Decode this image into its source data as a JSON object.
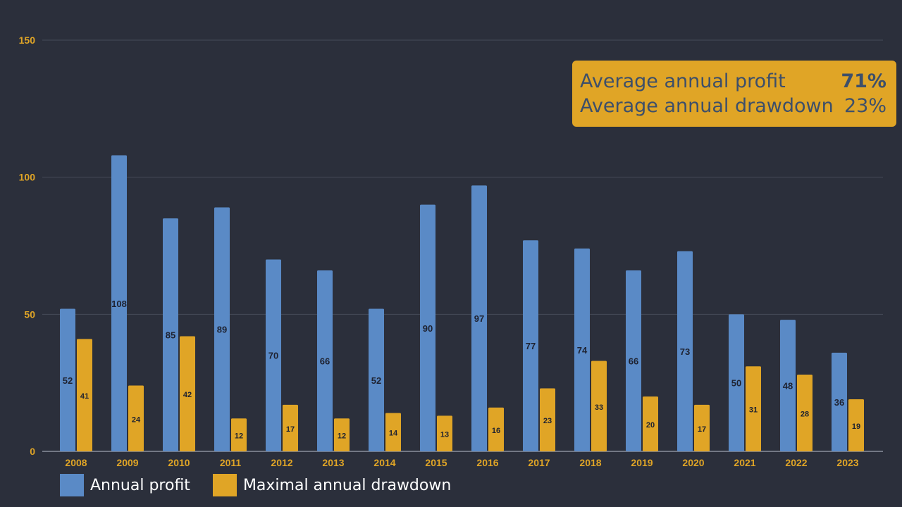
{
  "chart_data": {
    "type": "bar",
    "categories": [
      "2008",
      "2009",
      "2010",
      "2011",
      "2012",
      "2013",
      "2014",
      "2015",
      "2016",
      "2017",
      "2018",
      "2019",
      "2020",
      "2021",
      "2022",
      "2023"
    ],
    "series": [
      {
        "name": "Annual profit",
        "color": "#5a8ac6",
        "values": [
          52,
          108,
          85,
          89,
          70,
          66,
          52,
          90,
          97,
          77,
          74,
          66,
          73,
          50,
          48,
          36
        ]
      },
      {
        "name": "Maximal annual drawdown",
        "color": "#e0a526",
        "values": [
          41,
          24,
          42,
          12,
          17,
          12,
          14,
          13,
          16,
          23,
          33,
          20,
          17,
          31,
          28,
          19
        ]
      }
    ],
    "ylim": [
      0,
      150
    ],
    "yticks": [
      0,
      50,
      100,
      150
    ],
    "grid": true,
    "legend_position": "bottom-left",
    "title": "",
    "xlabel": "",
    "ylabel": ""
  },
  "summary": {
    "profit_label": "Average annual profit",
    "profit_value": "71%",
    "drawdown_label": "Average annual drawdown",
    "drawdown_value": "23%"
  },
  "legend": {
    "profit_label": "Annual profit",
    "drawdown_label": "Maximal annual drawdown"
  }
}
